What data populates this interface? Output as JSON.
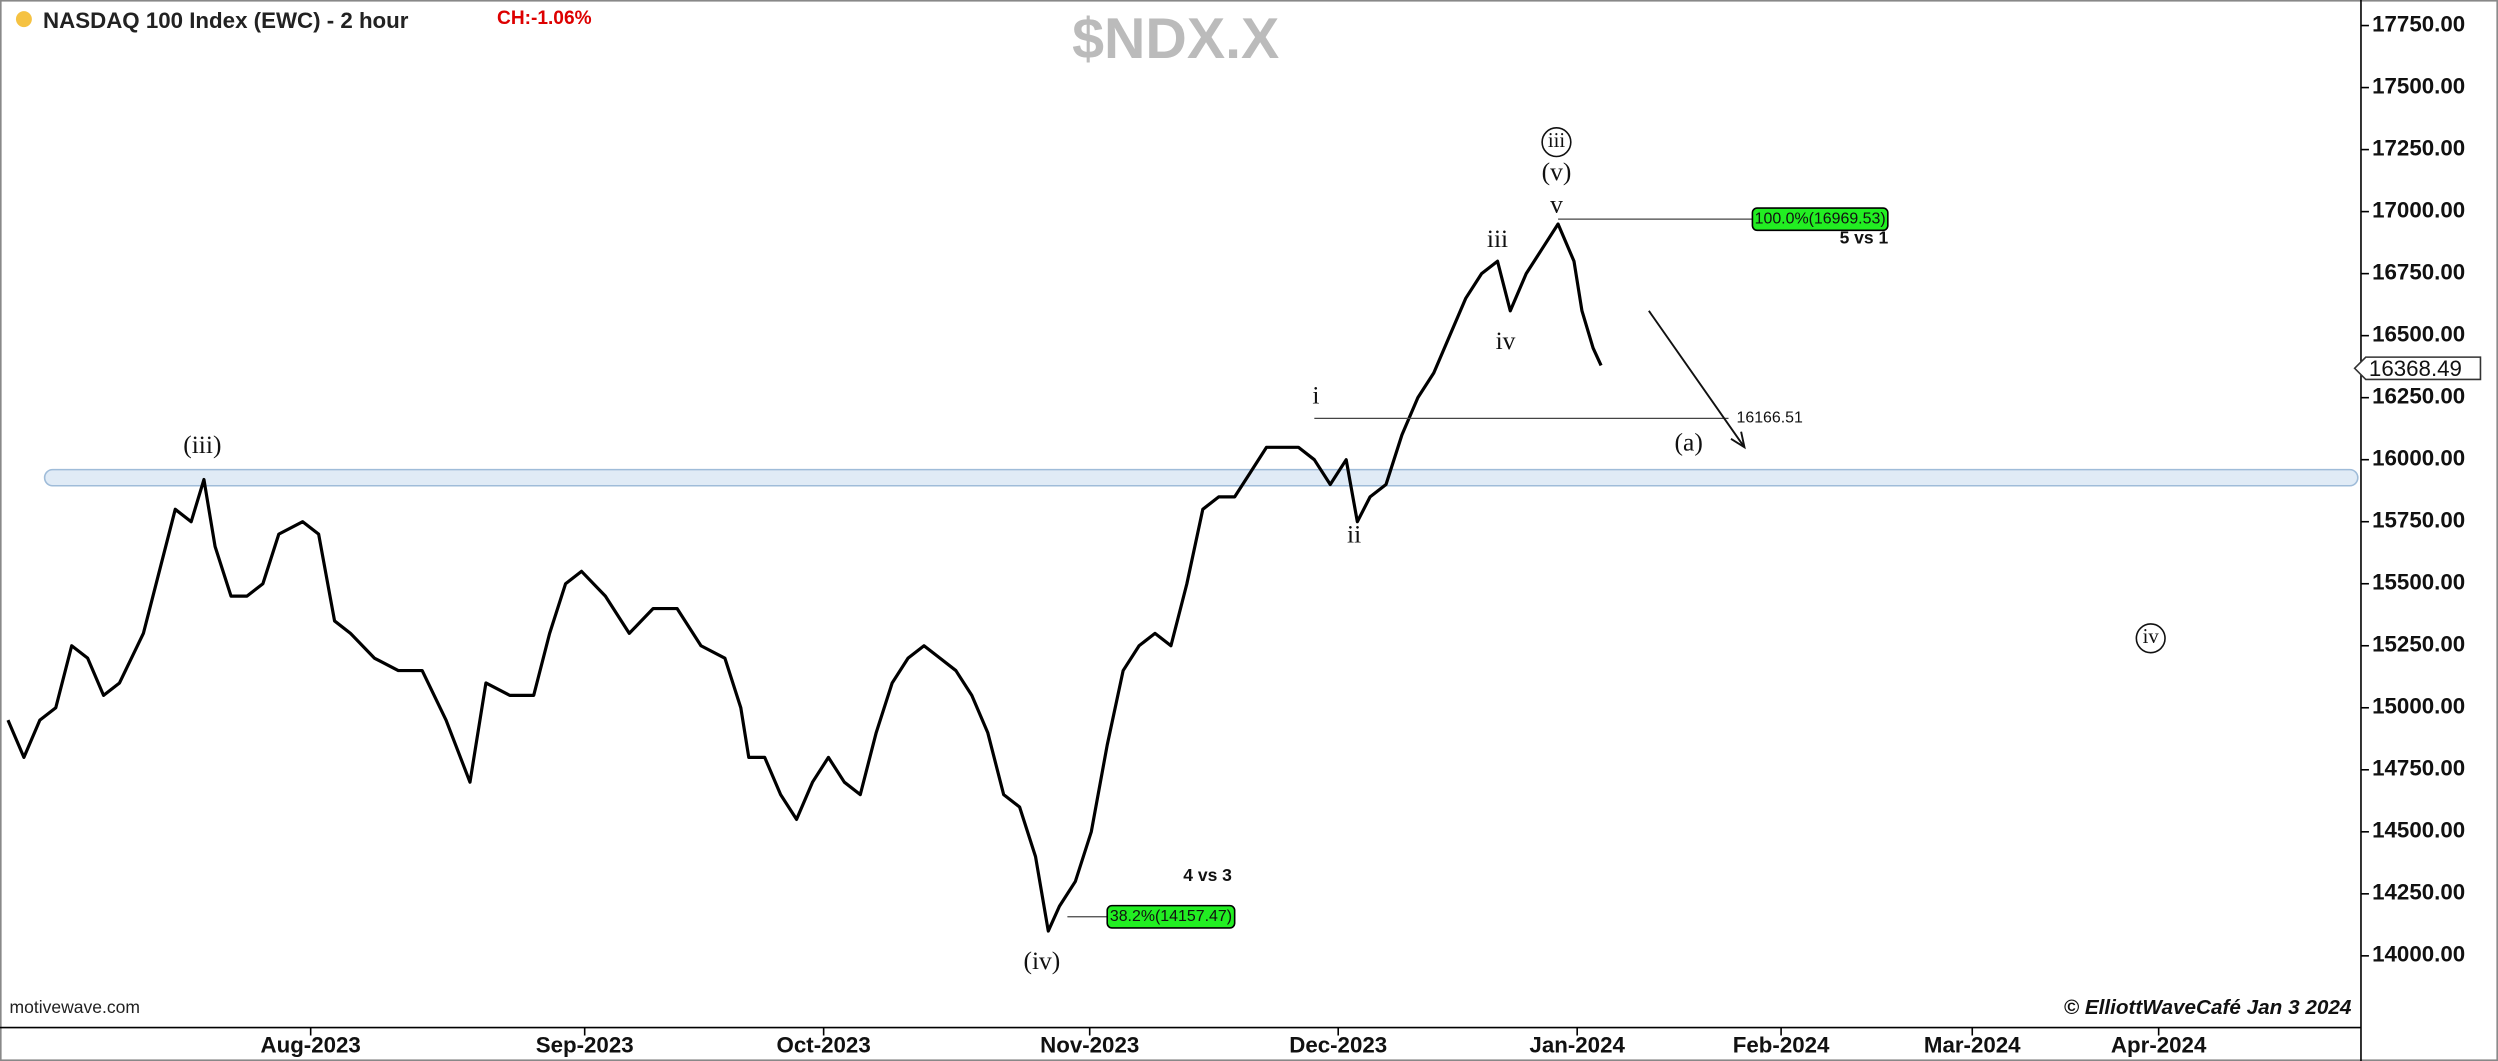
{
  "chart_data": {
    "type": "line",
    "title": "NASDAQ 100 Index (EWC) - 2 hour",
    "change": "CH:-1.06%",
    "symbol": "$NDX.X",
    "source": "motivewave.com",
    "credit": "© ElliottWaveCafé Jan 3 2024",
    "xlim": [
      0,
      296
    ],
    "xticks": [
      {
        "value": 39,
        "label": "Aug-2023"
      },
      {
        "value": 73.4,
        "label": "Sep-2023"
      },
      {
        "value": 103.4,
        "label": "Oct-2023"
      },
      {
        "value": 136.8,
        "label": "Nov-2023"
      },
      {
        "value": 168,
        "label": "Dec-2023"
      },
      {
        "value": 198,
        "label": "Jan-2024"
      },
      {
        "value": 223.6,
        "label": "Feb-2024"
      },
      {
        "value": 247.6,
        "label": "Mar-2024"
      },
      {
        "value": 271,
        "label": "Apr-2024"
      }
    ],
    "ylim": [
      13711,
      17853
    ],
    "yticks": [
      {
        "value": 14000,
        "label": "14000.00"
      },
      {
        "value": 14250,
        "label": "14250.00"
      },
      {
        "value": 14500,
        "label": "14500.00"
      },
      {
        "value": 14750,
        "label": "14750.00"
      },
      {
        "value": 15000,
        "label": "15000.00"
      },
      {
        "value": 15250,
        "label": "15250.00"
      },
      {
        "value": 15500,
        "label": "15500.00"
      },
      {
        "value": 15750,
        "label": "15750.00"
      },
      {
        "value": 16000,
        "label": "16000.00"
      },
      {
        "value": 16250,
        "label": "16250.00"
      },
      {
        "value": 16500,
        "label": "16500.00"
      },
      {
        "value": 16750,
        "label": "16750.00"
      },
      {
        "value": 17000,
        "label": "17000.00"
      },
      {
        "value": 17250,
        "label": "17250.00"
      },
      {
        "value": 17500,
        "label": "17500.00"
      },
      {
        "value": 17750,
        "label": "17750.00"
      }
    ],
    "last_price": {
      "value": 16368.49,
      "label": "16368.49"
    },
    "x": [
      1,
      3,
      5,
      7,
      9,
      11,
      13,
      15,
      18,
      20,
      22,
      24,
      25.6,
      27,
      29,
      31,
      33,
      35,
      38,
      40,
      42,
      44,
      47,
      50,
      53,
      56,
      59,
      61,
      64,
      67,
      69,
      71,
      73,
      76,
      79,
      82,
      85,
      88,
      91,
      93,
      94,
      96,
      98,
      100,
      102,
      104,
      106,
      108,
      110,
      112,
      114,
      116,
      118,
      120,
      122,
      124,
      126,
      128,
      130,
      131.6,
      133,
      135,
      137,
      139,
      141,
      143,
      145,
      147,
      149,
      151,
      153,
      155,
      157,
      159,
      161,
      163,
      165,
      167,
      169,
      170.4,
      172,
      174,
      176,
      178,
      180,
      182,
      184,
      186,
      188,
      189.6,
      191.6,
      193.6,
      195.6,
      197.6,
      198.6,
      200,
      201
    ],
    "series": [
      {
        "name": "NASDAQ 100",
        "color": "#000000",
        "values": [
          14950,
          14800,
          14950,
          15000,
          15250,
          15200,
          15050,
          15100,
          15300,
          15550,
          15800,
          15750,
          15920,
          15650,
          15450,
          15450,
          15500,
          15700,
          15750,
          15700,
          15350,
          15300,
          15200,
          15150,
          15150,
          14950,
          14700,
          15100,
          15050,
          15050,
          15300,
          15500,
          15550,
          15450,
          15300,
          15400,
          15400,
          15250,
          15200,
          15000,
          14800,
          14800,
          14650,
          14550,
          14700,
          14800,
          14700,
          14650,
          14900,
          15100,
          15200,
          15250,
          15200,
          15150,
          15050,
          14900,
          14650,
          14600,
          14400,
          14100,
          14200,
          14300,
          14500,
          14850,
          15150,
          15250,
          15300,
          15250,
          15500,
          15800,
          15850,
          15850,
          15950,
          16050,
          16050,
          16050,
          16000,
          15900,
          16000,
          15750,
          15850,
          15900,
          16100,
          16250,
          16350,
          16500,
          16650,
          16750,
          16800,
          16600,
          16750,
          16850,
          16950,
          16800,
          16600,
          16450,
          16380
        ]
      }
    ],
    "zone": {
      "from": 15895,
      "to": 15960,
      "x": [
        5.6,
        296
      ]
    },
    "levels": [
      {
        "label": "38.2%(14157.47)",
        "value": 14157.47,
        "x": [
          134,
          139,
          155
        ],
        "boxed": true
      },
      {
        "label": "100.0%(16969.53)",
        "value": 16969.53,
        "x": [
          195.6,
          220,
          237
        ],
        "boxed": true
      },
      {
        "label": "16166.51",
        "value": 16166.51,
        "x": [
          165,
          217,
          218
        ],
        "boxed": false
      }
    ],
    "arrow": {
      "x": [
        207,
        219
      ],
      "y": [
        16600,
        16050
      ]
    },
    "annotations": [
      {
        "text": "(iii)",
        "x": 25.4,
        "y": 16050
      },
      {
        "text": "(iv)",
        "x": 130.8,
        "y": 13970
      },
      {
        "text": "i",
        "x": 165.2,
        "y": 16250
      },
      {
        "text": "ii",
        "x": 170,
        "y": 15690
      },
      {
        "text": "iii",
        "x": 188,
        "y": 16880
      },
      {
        "text": "iv",
        "x": 189,
        "y": 16470
      },
      {
        "text": "v",
        "x": 195.4,
        "y": 17020
      },
      {
        "text": "(v)",
        "x": 195.4,
        "y": 17150
      },
      {
        "text": "iii",
        "x": 195.4,
        "y": 17280,
        "circled": true
      },
      {
        "text": "(a)",
        "x": 212,
        "y": 16060
      },
      {
        "text": "iv",
        "x": 270,
        "y": 15280,
        "circled": true
      },
      {
        "text": "4 vs 3",
        "x": 151.6,
        "y": 14320,
        "bold": true
      },
      {
        "text": "5 vs 1",
        "x": 234,
        "y": 16890,
        "bold": true
      }
    ]
  }
}
